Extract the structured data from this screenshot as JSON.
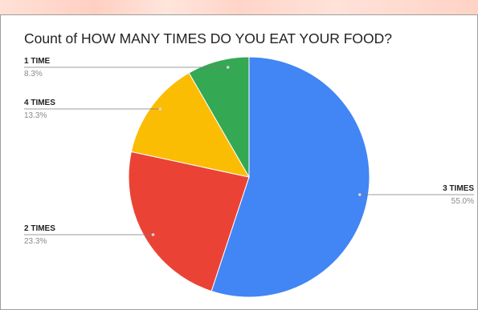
{
  "chart_data": {
    "type": "pie",
    "title": "Count of HOW MANY TIMES DO YOU EAT YOUR FOOD?",
    "slices": [
      {
        "label": "3 TIMES",
        "value": 55.0,
        "percent_label": "55.0%",
        "color": "#4285f4"
      },
      {
        "label": "2 TIMES",
        "value": 23.3,
        "percent_label": "23.3%",
        "color": "#ea4335"
      },
      {
        "label": "4 TIMES",
        "value": 13.3,
        "percent_label": "13.3%",
        "color": "#fbbc04"
      },
      {
        "label": "1 TIME",
        "value": 8.3,
        "percent_label": "8.3%",
        "color": "#34a853"
      }
    ],
    "legend": "none",
    "label_style": "callout"
  }
}
